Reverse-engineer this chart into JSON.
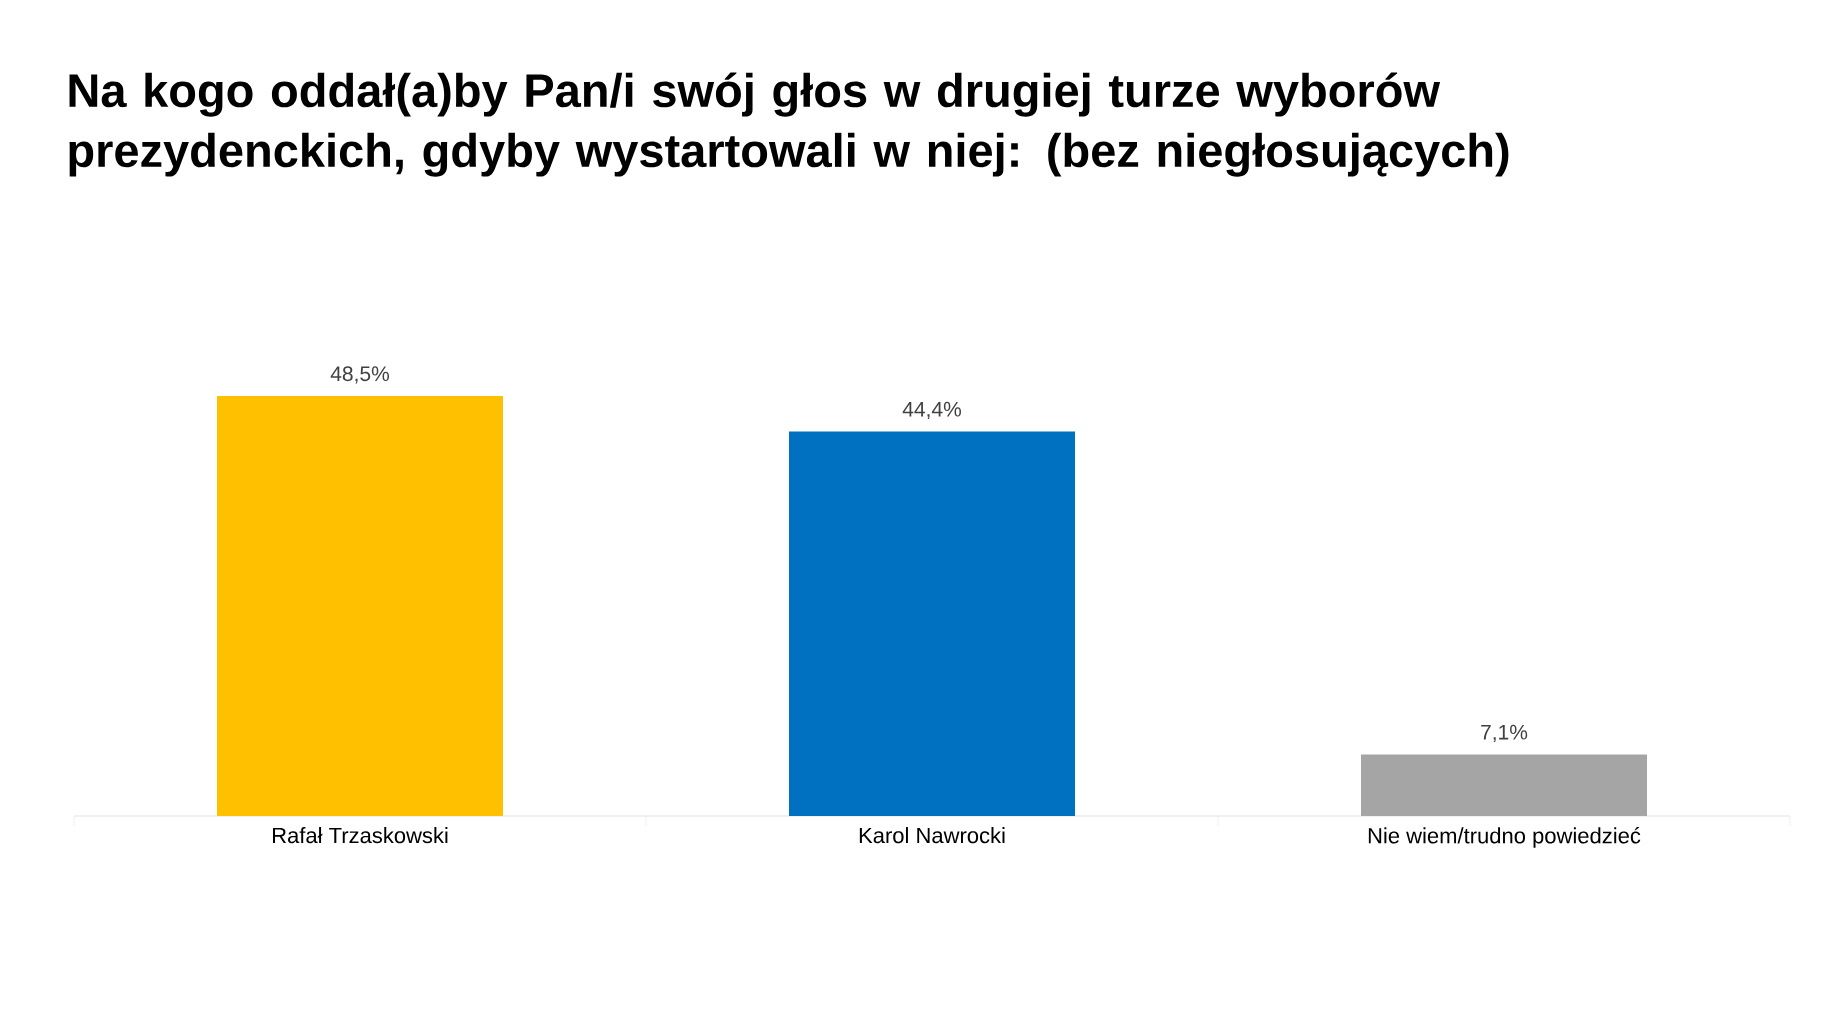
{
  "chart_data": {
    "type": "bar",
    "title": "Na kogo oddał(a)by Pan/i swój głos w drugiej turze wyborów prezydenckich, gdyby wystartowali w niej: (bez niegłosujących)",
    "categories": [
      "Rafał Trzaskowski",
      "Karol Nawrocki",
      "Nie wiem/trudno powiedzieć"
    ],
    "values": [
      48.5,
      44.4,
      7.1
    ],
    "colors": [
      "#ffc000",
      "#0070c0",
      "#a5a5a5"
    ],
    "value_labels": [
      "48,5%",
      "44,4%",
      "7,1%"
    ]
  }
}
